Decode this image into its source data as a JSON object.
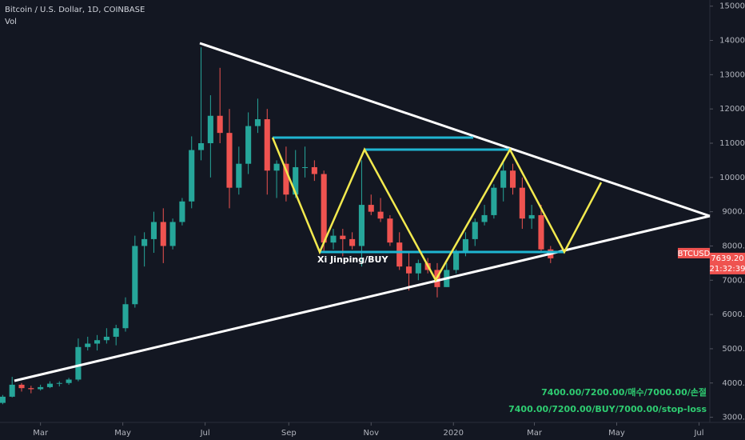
{
  "chart_data": {
    "type": "candlestick",
    "title": "Bitcoin / U.S. Dollar, 1D, COINBASE",
    "subtitle": "Vol",
    "x": [
      -28,
      -21,
      -14,
      -7,
      0,
      7,
      14,
      21,
      28,
      35,
      42,
      49,
      56,
      63,
      70,
      77,
      84,
      91,
      98,
      105,
      112,
      119,
      126,
      133,
      140,
      147,
      154,
      161,
      168,
      175,
      182,
      189,
      196,
      203,
      210,
      217,
      224,
      231,
      238,
      245,
      252,
      259,
      266,
      273,
      280,
      287,
      294,
      301,
      308,
      315,
      322,
      329,
      336,
      343,
      350,
      357,
      364,
      371,
      378
    ],
    "open": [
      3420,
      3600,
      3950,
      3850,
      3820,
      3880,
      3980,
      4000,
      4100,
      5050,
      5150,
      5250,
      5350,
      5600,
      6300,
      8000,
      8200,
      8700,
      8000,
      8700,
      9300,
      10800,
      11000,
      11800,
      11300,
      9700,
      10400,
      11500,
      11700,
      10200,
      10400,
      9500,
      10300,
      10300,
      10100,
      8100,
      8300,
      8200,
      8000,
      9200,
      9000,
      8800,
      8100,
      7400,
      7200,
      7500,
      7300,
      6800,
      7300,
      7800,
      8200,
      8700,
      8900,
      9700,
      10200,
      9700,
      8800,
      8900,
      7900
    ],
    "high": [
      3650,
      4180,
      4000,
      3920,
      3950,
      4050,
      4050,
      4150,
      5300,
      5350,
      5400,
      5600,
      5700,
      6500,
      8300,
      8400,
      9000,
      9100,
      8800,
      9400,
      11200,
      13800,
      12400,
      13200,
      12000,
      10900,
      11900,
      12300,
      12000,
      10500,
      10900,
      10800,
      10900,
      10500,
      10200,
      8500,
      8500,
      8400,
      10500,
      9500,
      9400,
      8900,
      8400,
      7800,
      7600,
      7650,
      7500,
      7500,
      7900,
      8400,
      8800,
      9200,
      9800,
      10500,
      10400,
      10000,
      9200,
      9200,
      8000
    ],
    "low": [
      3380,
      3580,
      3750,
      3700,
      3780,
      3850,
      3900,
      3950,
      4050,
      4950,
      4950,
      5150,
      5100,
      5500,
      6200,
      7400,
      7800,
      7500,
      7900,
      8600,
      9100,
      10500,
      10000,
      11000,
      9100,
      9500,
      10100,
      11300,
      9500,
      9400,
      9300,
      9400,
      10000,
      9900,
      7800,
      7900,
      7700,
      7900,
      7400,
      8900,
      8700,
      8000,
      7300,
      6700,
      7000,
      7200,
      6500,
      6800,
      7200,
      7700,
      8000,
      8600,
      8800,
      9300,
      9500,
      8500,
      8500,
      7800,
      7500
    ],
    "close": [
      3600,
      3950,
      3850,
      3820,
      3880,
      3980,
      4000,
      4100,
      5050,
      5150,
      5250,
      5350,
      5600,
      6300,
      8000,
      8200,
      8700,
      8000,
      8700,
      9300,
      10800,
      11000,
      11800,
      11300,
      9700,
      10400,
      11500,
      11700,
      10200,
      10400,
      9500,
      10300,
      10300,
      10100,
      8100,
      8300,
      8200,
      8000,
      9200,
      9000,
      8800,
      8100,
      7400,
      7200,
      7500,
      7300,
      6800,
      7300,
      7800,
      8200,
      8700,
      8900,
      9700,
      10200,
      9700,
      8800,
      8900,
      7900,
      7640
    ],
    "up_color": "#26a69a",
    "down_color": "#ef5350",
    "xlim": [
      -30,
      496
    ],
    "xticks": [
      {
        "value": 0,
        "label": "Mar"
      },
      {
        "value": 61,
        "label": "May"
      },
      {
        "value": 122,
        "label": "Jul"
      },
      {
        "value": 184,
        "label": "Sep"
      },
      {
        "value": 245,
        "label": "Nov"
      },
      {
        "value": 306,
        "label": "2020"
      },
      {
        "value": 366,
        "label": "Mar"
      },
      {
        "value": 427,
        "label": "May"
      },
      {
        "value": 488,
        "label": "Jul"
      }
    ],
    "ylim": [
      2850,
      15180
    ],
    "yticks": [
      {
        "value": 3000,
        "label": "3000.00"
      },
      {
        "value": 4000,
        "label": "4000.00"
      },
      {
        "value": 5000,
        "label": "5000.00"
      },
      {
        "value": 6000,
        "label": "6000.00"
      },
      {
        "value": 7000,
        "label": "7000.00"
      },
      {
        "value": 8000,
        "label": "8000.00"
      },
      {
        "value": 9000,
        "label": "9000.00"
      },
      {
        "value": 10000,
        "label": "10000.00"
      },
      {
        "value": 11000,
        "label": "11000.00"
      },
      {
        "value": 12000,
        "label": "12000.00"
      },
      {
        "value": 13000,
        "label": "13000.00"
      },
      {
        "value": 14000,
        "label": "14000.00"
      },
      {
        "value": 15000,
        "label": "15000.00"
      }
    ],
    "symbol_tag": "BTCUSD",
    "last_price": {
      "value": 7639.2,
      "label": "7639.20"
    },
    "countdown": "21:32:39",
    "annotation": "Xi Jinping/BUY",
    "notes": [
      "7400.00/7200.00/매수/7000.00/손절",
      "7400.00/7200.00/BUY/7000.00/stop-loss"
    ]
  }
}
